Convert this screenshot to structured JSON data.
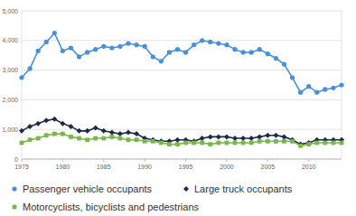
{
  "chart_data": {
    "type": "line",
    "x": [
      1975,
      1976,
      1977,
      1978,
      1979,
      1980,
      1981,
      1982,
      1983,
      1984,
      1985,
      1986,
      1987,
      1988,
      1989,
      1990,
      1991,
      1992,
      1993,
      1994,
      1995,
      1996,
      1997,
      1998,
      1999,
      2000,
      2001,
      2002,
      2003,
      2004,
      2005,
      2006,
      2007,
      2008,
      2009,
      2010,
      2011,
      2012,
      2013,
      2014
    ],
    "series": [
      {
        "name": "Passenger vehicle occupants",
        "color": "#4a90d9",
        "marker": "circle",
        "values": [
          2750,
          3050,
          3650,
          3950,
          4250,
          3650,
          3750,
          3450,
          3600,
          3700,
          3800,
          3750,
          3800,
          3900,
          3850,
          3800,
          3450,
          3300,
          3600,
          3700,
          3600,
          3850,
          4000,
          3950,
          3900,
          3850,
          3700,
          3600,
          3600,
          3700,
          3550,
          3400,
          3200,
          2750,
          2250,
          2450,
          2250,
          2350,
          2400,
          2500
        ]
      },
      {
        "name": "Large truck occupants",
        "color": "#1c2a4a",
        "marker": "diamond",
        "values": [
          950,
          1100,
          1200,
          1300,
          1350,
          1200,
          1100,
          950,
          950,
          1050,
          950,
          900,
          850,
          900,
          850,
          700,
          650,
          600,
          600,
          650,
          650,
          600,
          700,
          750,
          750,
          750,
          700,
          700,
          700,
          750,
          800,
          800,
          750,
          650,
          500,
          550,
          650,
          650,
          650,
          650
        ]
      },
      {
        "name": "Motorcyclists, bicyclists and pedestrians",
        "color": "#7ab648",
        "marker": "square",
        "values": [
          550,
          650,
          700,
          800,
          850,
          850,
          750,
          700,
          650,
          700,
          700,
          750,
          700,
          650,
          650,
          600,
          600,
          550,
          500,
          500,
          550,
          550,
          550,
          500,
          550,
          550,
          550,
          550,
          550,
          600,
          600,
          600,
          600,
          600,
          450,
          500,
          550,
          550,
          550,
          550
        ]
      }
    ],
    "xlim": [
      1975,
      2014
    ],
    "xticks": [
      1975,
      1980,
      1985,
      1990,
      1995,
      2000,
      2005,
      2010
    ],
    "ylim": [
      0,
      5000
    ],
    "yticks": [
      0,
      {
        "value": 1000,
        "label": "1,000"
      },
      {
        "value": 2000,
        "label": "2,000"
      },
      {
        "value": 3000,
        "label": "3,000"
      },
      {
        "value": 4000,
        "label": "4,000"
      },
      {
        "value": 5000,
        "label": "5,000"
      }
    ],
    "grid": true,
    "legend": "bottom"
  }
}
